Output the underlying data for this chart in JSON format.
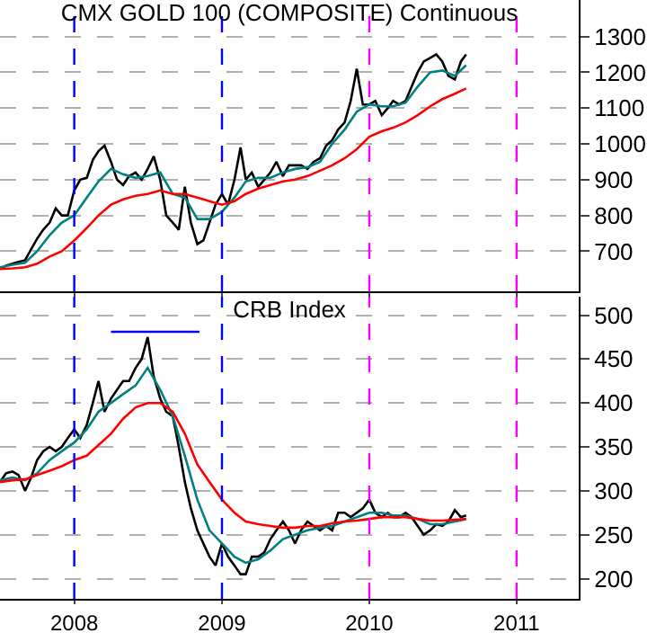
{
  "chart_data": [
    {
      "type": "line",
      "title": "CMX GOLD 100 (COMPOSITE) Continuous",
      "tick_labels": "y",
      "grid": "y",
      "xlim": [
        "2007-07-01",
        "2011-06-04"
      ],
      "xticks": [
        {
          "value": "2008-01-01",
          "label": null
        },
        {
          "value": "2009-01-01",
          "label": null
        },
        {
          "value": "2010-01-01",
          "label": null
        },
        {
          "value": "2011-01-01",
          "label": null
        }
      ],
      "ylim": [
        588,
        1402
      ],
      "yticks": [
        700,
        800,
        900,
        1000,
        1100,
        1200,
        1300
      ],
      "x": [
        "2007-07-01",
        "2007-07-16",
        "2007-08-01",
        "2007-08-16",
        "2007-09-01",
        "2007-09-16",
        "2007-10-01",
        "2007-10-16",
        "2007-11-01",
        "2007-11-16",
        "2007-12-01",
        "2007-12-16",
        "2008-01-01",
        "2008-01-16",
        "2008-02-01",
        "2008-02-16",
        "2008-03-01",
        "2008-03-16",
        "2008-04-01",
        "2008-04-16",
        "2008-05-01",
        "2008-05-16",
        "2008-06-01",
        "2008-06-16",
        "2008-07-01",
        "2008-07-16",
        "2008-08-01",
        "2008-08-16",
        "2008-09-01",
        "2008-09-16",
        "2008-10-01",
        "2008-10-16",
        "2008-11-01",
        "2008-11-16",
        "2008-12-01",
        "2008-12-16",
        "2009-01-01",
        "2009-01-16",
        "2009-02-01",
        "2009-02-16",
        "2009-03-01",
        "2009-03-16",
        "2009-04-01",
        "2009-04-16",
        "2009-05-01",
        "2009-05-16",
        "2009-06-01",
        "2009-06-16",
        "2009-07-01",
        "2009-07-16",
        "2009-08-01",
        "2009-08-16",
        "2009-09-01",
        "2009-09-16",
        "2009-10-01",
        "2009-10-16",
        "2009-11-01",
        "2009-11-16",
        "2009-12-01",
        "2009-12-16",
        "2010-01-01",
        "2010-01-16",
        "2010-02-01",
        "2010-02-16",
        "2010-03-01",
        "2010-03-16",
        "2010-04-01",
        "2010-04-16",
        "2010-05-01",
        "2010-05-16",
        "2010-06-01",
        "2010-06-16",
        "2010-07-01",
        "2010-07-16",
        "2010-08-01",
        "2010-08-16",
        "2010-08-29"
      ],
      "series": [
        {
          "color": "#000000",
          "values": [
            650,
            660,
            665,
            670,
            675,
            705,
            735,
            760,
            780,
            820,
            800,
            800,
            870,
            900,
            905,
            955,
            980,
            995,
            950,
            900,
            885,
            910,
            920,
            900,
            930,
            965,
            900,
            800,
            780,
            760,
            880,
            780,
            720,
            730,
            780,
            830,
            860,
            830,
            900,
            990,
            900,
            920,
            880,
            900,
            920,
            950,
            910,
            940,
            940,
            940,
            930,
            950,
            960,
            995,
            1010,
            1040,
            1060,
            1120,
            1210,
            1110,
            1110,
            1120,
            1080,
            1100,
            1120,
            1110,
            1120,
            1160,
            1200,
            1230,
            1240,
            1250,
            1230,
            1190,
            1180,
            1230,
            1250
          ]
        },
        {
          "color": "#008080",
          "x": [
            "2007-07-01",
            "2007-08-01",
            "2007-09-01",
            "2007-10-01",
            "2007-11-01",
            "2007-12-01",
            "2008-01-01",
            "2008-02-01",
            "2008-03-01",
            "2008-04-01",
            "2008-05-01",
            "2008-06-01",
            "2008-07-01",
            "2008-08-01",
            "2008-09-01",
            "2008-10-01",
            "2008-11-01",
            "2008-12-01",
            "2009-01-01",
            "2009-02-01",
            "2009-03-01",
            "2009-04-01",
            "2009-05-01",
            "2009-06-01",
            "2009-07-01",
            "2009-08-01",
            "2009-09-01",
            "2009-10-01",
            "2009-11-01",
            "2009-12-01",
            "2010-01-01",
            "2010-02-01",
            "2010-03-01",
            "2010-04-01",
            "2010-05-01",
            "2010-06-01",
            "2010-07-01",
            "2010-08-01",
            "2010-08-29"
          ],
          "values": [
            655,
            662,
            668,
            700,
            745,
            780,
            800,
            850,
            895,
            930,
            915,
            905,
            910,
            920,
            860,
            850,
            790,
            790,
            810,
            850,
            895,
            905,
            905,
            920,
            930,
            935,
            950,
            1000,
            1040,
            1090,
            1110,
            1105,
            1105,
            1115,
            1160,
            1200,
            1205,
            1190,
            1220
          ]
        },
        {
          "color": "#ff0000",
          "x": [
            "2007-07-01",
            "2007-08-01",
            "2007-09-01",
            "2007-10-01",
            "2007-11-01",
            "2007-12-01",
            "2008-01-01",
            "2008-02-01",
            "2008-03-01",
            "2008-04-01",
            "2008-05-01",
            "2008-06-01",
            "2008-07-01",
            "2008-08-01",
            "2008-09-01",
            "2008-10-01",
            "2008-11-01",
            "2008-12-01",
            "2009-01-01",
            "2009-02-01",
            "2009-03-01",
            "2009-04-01",
            "2009-05-01",
            "2009-06-01",
            "2009-07-01",
            "2009-08-01",
            "2009-09-01",
            "2009-10-01",
            "2009-11-01",
            "2009-12-01",
            "2010-01-01",
            "2010-02-01",
            "2010-03-01",
            "2010-04-01",
            "2010-05-01",
            "2010-06-01",
            "2010-07-01",
            "2010-08-01",
            "2010-08-29"
          ],
          "values": [
            650,
            652,
            655,
            665,
            685,
            700,
            730,
            765,
            800,
            830,
            845,
            855,
            860,
            870,
            860,
            860,
            850,
            840,
            830,
            840,
            860,
            875,
            885,
            895,
            900,
            910,
            925,
            940,
            960,
            985,
            1020,
            1035,
            1045,
            1060,
            1080,
            1105,
            1125,
            1140,
            1155
          ]
        }
      ],
      "ref_lines": [
        {
          "axis": "x",
          "value": "2008-01-01",
          "color": "#0000ff",
          "line_style": "dashed"
        },
        {
          "axis": "x",
          "value": "2009-01-01",
          "color": "#0000ff",
          "line_style": "dashed"
        },
        {
          "axis": "x",
          "value": "2010-01-01",
          "color": "#ff00ff",
          "line_style": "dashed"
        },
        {
          "axis": "x",
          "value": "2011-01-01",
          "color": "#ff00ff",
          "line_style": "dashed"
        }
      ]
    },
    {
      "type": "line",
      "title": "CRB Index",
      "grid": "y",
      "xlim": [
        "2007-07-01",
        "2011-06-04"
      ],
      "xticks": [
        {
          "value": "2008-01-01",
          "label": "2008"
        },
        {
          "value": "2009-01-01",
          "label": "2009"
        },
        {
          "value": "2010-01-01",
          "label": "2010"
        },
        {
          "value": "2011-01-01",
          "label": "2011"
        }
      ],
      "ylim": [
        177,
        521
      ],
      "yticks": [
        200,
        250,
        300,
        350,
        400,
        450,
        500
      ],
      "x": [
        "2007-07-01",
        "2007-07-16",
        "2007-08-01",
        "2007-08-16",
        "2007-09-01",
        "2007-09-16",
        "2007-10-01",
        "2007-10-16",
        "2007-11-01",
        "2007-11-16",
        "2007-12-01",
        "2007-12-16",
        "2008-01-01",
        "2008-01-16",
        "2008-02-01",
        "2008-02-16",
        "2008-03-01",
        "2008-03-16",
        "2008-04-01",
        "2008-04-16",
        "2008-05-01",
        "2008-05-16",
        "2008-06-01",
        "2008-06-16",
        "2008-07-01",
        "2008-07-16",
        "2008-08-01",
        "2008-08-16",
        "2008-09-01",
        "2008-09-16",
        "2008-10-01",
        "2008-10-16",
        "2008-11-01",
        "2008-11-16",
        "2008-12-01",
        "2008-12-16",
        "2009-01-01",
        "2009-01-16",
        "2009-02-01",
        "2009-02-16",
        "2009-03-01",
        "2009-03-16",
        "2009-04-01",
        "2009-04-16",
        "2009-05-01",
        "2009-05-16",
        "2009-06-01",
        "2009-06-16",
        "2009-07-01",
        "2009-07-16",
        "2009-08-01",
        "2009-08-16",
        "2009-09-01",
        "2009-09-16",
        "2009-10-01",
        "2009-10-16",
        "2009-11-01",
        "2009-11-16",
        "2009-12-01",
        "2009-12-16",
        "2010-01-01",
        "2010-01-16",
        "2010-02-01",
        "2010-02-16",
        "2010-03-01",
        "2010-03-16",
        "2010-04-01",
        "2010-04-16",
        "2010-05-01",
        "2010-05-16",
        "2010-06-01",
        "2010-06-16",
        "2010-07-01",
        "2010-07-16",
        "2010-08-01",
        "2010-08-16",
        "2010-08-29"
      ],
      "series": [
        {
          "color": "#000000",
          "values": [
            310,
            320,
            322,
            318,
            300,
            315,
            335,
            345,
            350,
            345,
            350,
            360,
            370,
            360,
            375,
            400,
            425,
            390,
            405,
            415,
            425,
            425,
            440,
            450,
            475,
            430,
            405,
            390,
            385,
            350,
            310,
            280,
            255,
            240,
            225,
            215,
            240,
            225,
            215,
            205,
            205,
            225,
            225,
            230,
            245,
            255,
            265,
            255,
            240,
            255,
            265,
            260,
            255,
            260,
            255,
            275,
            275,
            270,
            275,
            280,
            290,
            275,
            270,
            275,
            270,
            270,
            275,
            270,
            260,
            250,
            255,
            262,
            260,
            265,
            278,
            270,
            272
          ]
        },
        {
          "color": "#008080",
          "x": [
            "2007-07-01",
            "2007-08-01",
            "2007-09-01",
            "2007-10-01",
            "2007-11-01",
            "2007-12-01",
            "2008-01-01",
            "2008-02-01",
            "2008-03-01",
            "2008-04-01",
            "2008-05-01",
            "2008-06-01",
            "2008-07-01",
            "2008-08-01",
            "2008-09-01",
            "2008-10-01",
            "2008-11-01",
            "2008-12-01",
            "2009-01-01",
            "2009-02-01",
            "2009-03-01",
            "2009-04-01",
            "2009-05-01",
            "2009-06-01",
            "2009-07-01",
            "2009-08-01",
            "2009-09-01",
            "2009-10-01",
            "2009-11-01",
            "2009-12-01",
            "2010-01-01",
            "2010-02-01",
            "2010-03-01",
            "2010-04-01",
            "2010-05-01",
            "2010-06-01",
            "2010-07-01",
            "2010-08-01",
            "2010-08-29"
          ],
          "values": [
            312,
            315,
            312,
            320,
            335,
            345,
            355,
            370,
            390,
            400,
            410,
            420,
            440,
            415,
            385,
            340,
            290,
            255,
            240,
            225,
            218,
            222,
            232,
            245,
            250,
            255,
            258,
            260,
            265,
            270,
            275,
            275,
            272,
            272,
            268,
            262,
            262,
            265,
            268
          ]
        },
        {
          "color": "#ff0000",
          "x": [
            "2007-07-01",
            "2007-08-01",
            "2007-09-01",
            "2007-10-01",
            "2007-11-01",
            "2007-12-01",
            "2008-01-01",
            "2008-02-01",
            "2008-03-01",
            "2008-04-01",
            "2008-05-01",
            "2008-06-01",
            "2008-07-01",
            "2008-08-01",
            "2008-09-01",
            "2008-10-01",
            "2008-11-01",
            "2008-12-01",
            "2009-01-01",
            "2009-02-01",
            "2009-03-01",
            "2009-04-01",
            "2009-05-01",
            "2009-06-01",
            "2009-07-01",
            "2009-08-01",
            "2009-09-01",
            "2009-10-01",
            "2009-11-01",
            "2009-12-01",
            "2010-01-01",
            "2010-02-01",
            "2010-03-01",
            "2010-04-01",
            "2010-05-01",
            "2010-06-01",
            "2010-07-01",
            "2010-08-01",
            "2010-08-29"
          ],
          "values": [
            310,
            312,
            313,
            318,
            323,
            328,
            335,
            340,
            352,
            365,
            382,
            395,
            400,
            400,
            390,
            365,
            330,
            310,
            290,
            275,
            265,
            262,
            260,
            258,
            258,
            260,
            260,
            263,
            265,
            266,
            268,
            270,
            270,
            270,
            268,
            266,
            266,
            267,
            268
          ]
        },
        {
          "color": "#0000ff",
          "x": [
            "2008-04-01",
            "2008-11-06"
          ],
          "values": [
            481,
            481
          ]
        }
      ],
      "ref_lines": [
        {
          "axis": "x",
          "value": "2008-01-01",
          "color": "#0000ff",
          "line_style": "dashed"
        },
        {
          "axis": "x",
          "value": "2009-01-01",
          "color": "#0000ff",
          "line_style": "dashed"
        },
        {
          "axis": "x",
          "value": "2010-01-01",
          "color": "#ff00ff",
          "line_style": "dashed"
        },
        {
          "axis": "x",
          "value": "2011-01-01",
          "color": "#ff00ff",
          "line_style": "dashed"
        }
      ]
    }
  ]
}
